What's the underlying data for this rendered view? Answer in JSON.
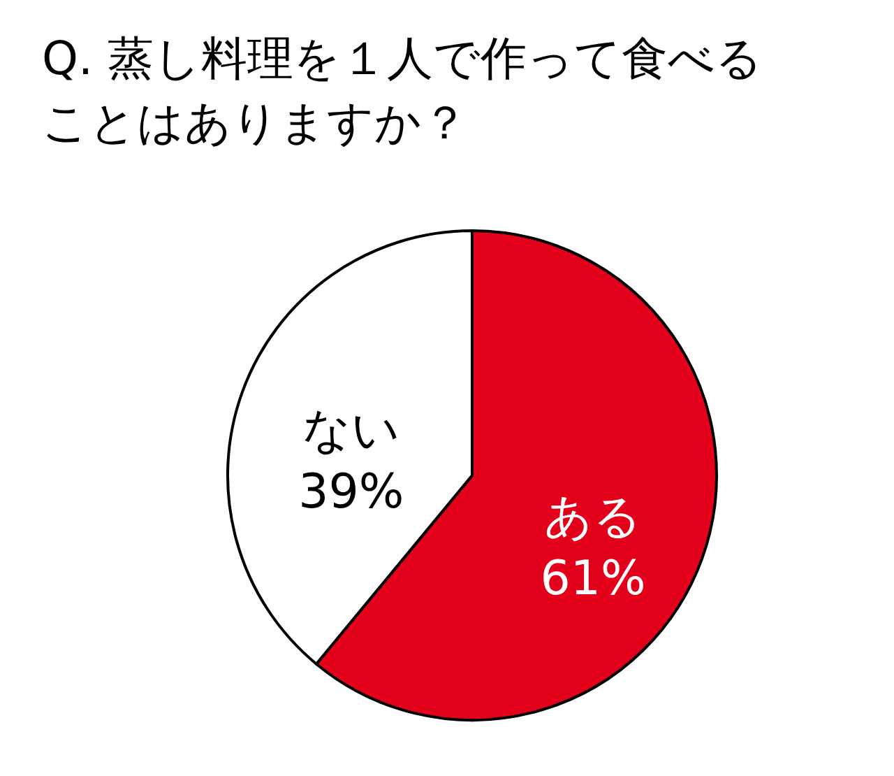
{
  "chart_data": {
    "type": "pie",
    "title": "Q. 蒸し料理を１人で作って食べることはありますか？",
    "categories": [
      "ある",
      "ない"
    ],
    "values": [
      61,
      39
    ],
    "colors": [
      "#e2001a",
      "#ffffff"
    ],
    "value_labels": [
      "61%",
      "39%"
    ]
  }
}
